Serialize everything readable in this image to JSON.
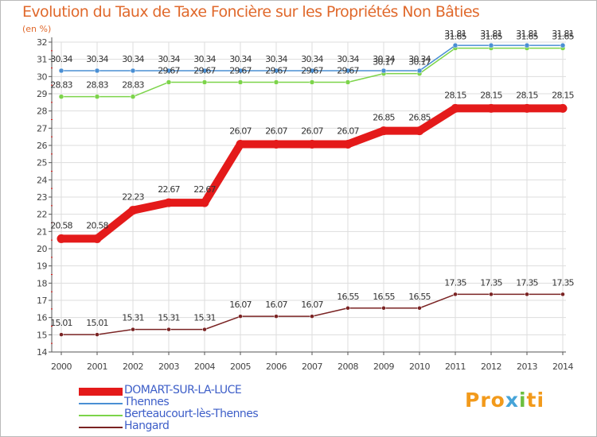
{
  "chart_data": {
    "type": "line",
    "title": "Evolution du Taux de Taxe Foncière sur les Propriétés Non Bâties",
    "ylabel": "(en %)",
    "x": [
      "2000",
      "2001",
      "2002",
      "2003",
      "2004",
      "2005",
      "2006",
      "2007",
      "2008",
      "2009",
      "2010",
      "2011",
      "2012",
      "2013",
      "2014"
    ],
    "yticks": [
      "14",
      "15",
      "16",
      "17",
      "18",
      "19",
      "20",
      "21",
      "22",
      "23",
      "24",
      "25",
      "26",
      "27",
      "28",
      "29",
      "30",
      "31",
      "32"
    ],
    "ylim": [
      14,
      32
    ],
    "grid": true,
    "legend_position": "bottom-left",
    "series": [
      {
        "name": "DOMART-SUR-LA-LUCE",
        "color": "#e41a1a",
        "values": [
          20.58,
          20.58,
          22.23,
          22.67,
          22.67,
          26.07,
          26.07,
          26.07,
          26.07,
          26.85,
          26.85,
          28.15,
          28.15,
          28.15,
          28.15
        ],
        "labels": [
          "20.58",
          "20.58",
          "22.23",
          "22.67",
          "22.67",
          "26.07",
          "26.07",
          "26.07",
          "26.07",
          "26.85",
          "26.85",
          "28.15",
          "28.15",
          "28.15",
          "28.15"
        ]
      },
      {
        "name": "Thennes",
        "color": "#4a8fd4",
        "values": [
          30.34,
          30.34,
          30.34,
          30.34,
          30.34,
          30.34,
          30.34,
          30.34,
          30.34,
          30.34,
          30.34,
          31.81,
          31.81,
          31.81,
          31.81
        ],
        "labels": [
          "30.34",
          "30.34",
          "30.34",
          "30.34",
          "30.34",
          "30.34",
          "30.34",
          "30.34",
          "30.34",
          "30.34",
          "30.34",
          "31.81",
          "31.81",
          "31.81",
          "31.81"
        ]
      },
      {
        "name": "Berteaucourt-lès-Thennes",
        "color": "#7cd44a",
        "values": [
          28.83,
          28.83,
          28.83,
          29.67,
          29.67,
          29.67,
          29.67,
          29.67,
          29.67,
          30.17,
          30.17,
          31.65,
          31.65,
          31.65,
          31.65
        ],
        "labels": [
          "28.83",
          "28.83",
          "28.83",
          "29.67",
          "29.67",
          "29.67",
          "29.67",
          "29.67",
          "29.67",
          "30.17",
          "30.17",
          "31.65",
          "31.65",
          "31.65",
          "31.65"
        ]
      },
      {
        "name": "Hangard",
        "color": "#7a2323",
        "values": [
          15.01,
          15.01,
          15.31,
          15.31,
          15.31,
          16.07,
          16.07,
          16.07,
          16.55,
          16.55,
          16.55,
          17.35,
          17.35,
          17.35,
          17.35
        ],
        "labels": [
          "15.01",
          "15.01",
          "15.31",
          "15.31",
          "15.31",
          "16.07",
          "16.07",
          "16.07",
          "16.55",
          "16.55",
          "16.55",
          "17.35",
          "17.35",
          "17.35",
          "17.35"
        ]
      }
    ]
  },
  "logo": {
    "p1": "Pro",
    "p2": "x",
    "p3": "i",
    "p4": "ti"
  }
}
